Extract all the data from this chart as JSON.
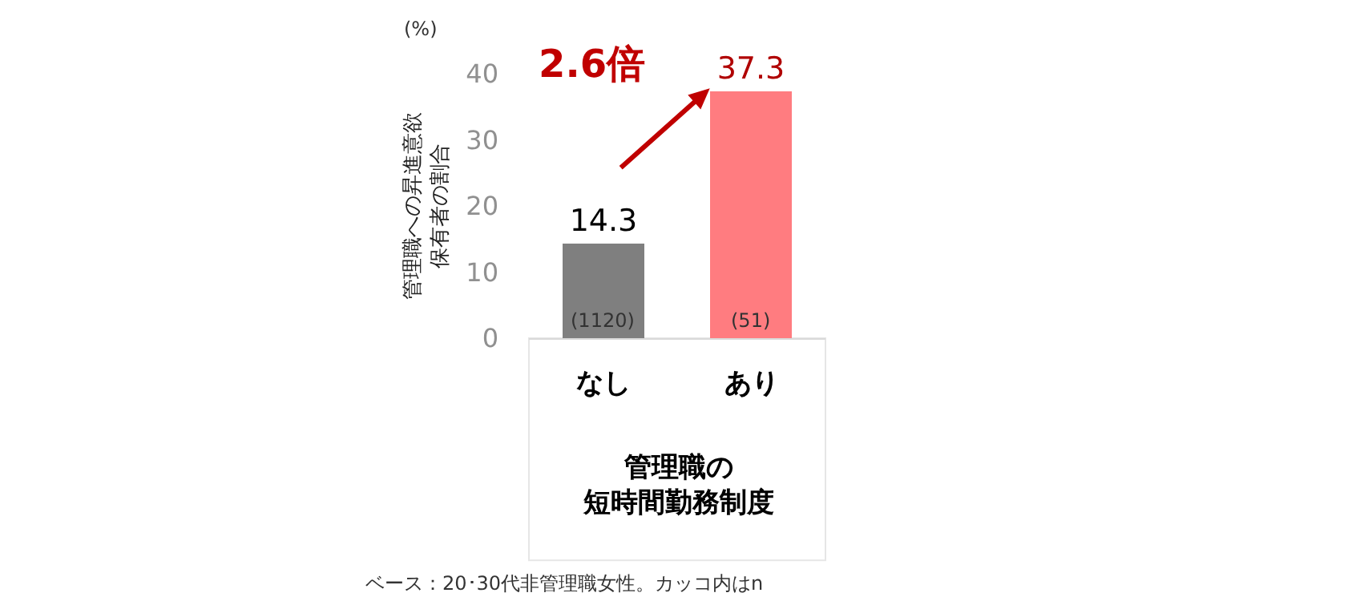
{
  "chart_data": {
    "type": "bar",
    "categories": [
      "なし",
      "あり"
    ],
    "values": [
      14.3,
      37.3
    ],
    "colors": [
      "#7f7f7f",
      "#ff7c80"
    ],
    "data_labels": true,
    "ylim": [
      0,
      40
    ],
    "yticks": [
      0,
      10,
      20,
      30,
      40
    ],
    "grid": false,
    "legend": false,
    "ylabel": "管理職への昇進意欲保有者の割合",
    "xlabel": "管理職の短時間勤務制度",
    "annotations": [
      "(%)",
      {
        "text": "2.6倍",
        "x": "あり",
        "y": 37.3
      },
      {
        "text": "(1120)",
        "x": "なし",
        "y": 0
      },
      {
        "text": "(51)",
        "x": "あり",
        "y": 0
      },
      "ベース：20･30代非管理職女性。カッコ内はn"
    ]
  }
}
